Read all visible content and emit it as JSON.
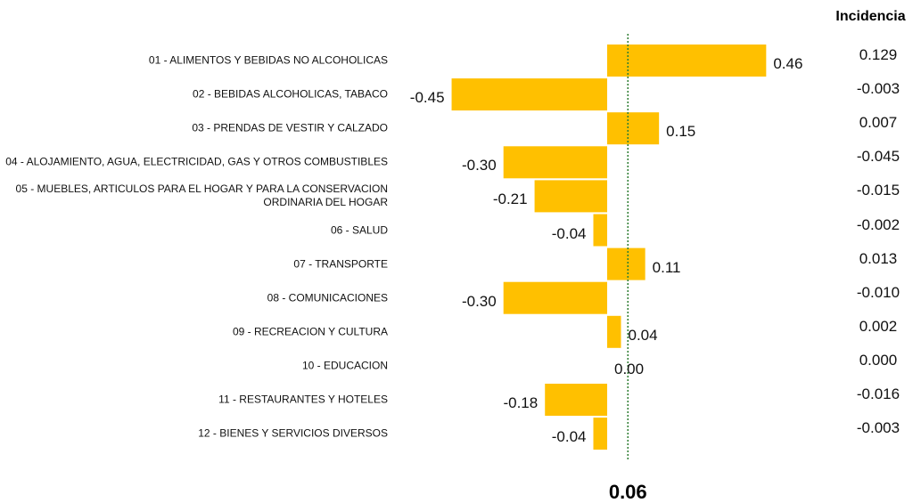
{
  "chart_data": {
    "type": "bar",
    "orientation": "horizontal",
    "categories": [
      "01 - ALIMENTOS Y BEBIDAS NO ALCOHOLICAS",
      "02 - BEBIDAS ALCOHOLICAS, TABACO",
      "03 - PRENDAS DE VESTIR Y CALZADO",
      "04 - ALOJAMIENTO, AGUA, ELECTRICIDAD, GAS Y OTROS COMBUSTIBLES",
      "05 - MUEBLES, ARTICULOS PARA EL HOGAR Y PARA LA CONSERVACION ORDINARIA DEL HOGAR",
      "06 - SALUD",
      "07 - TRANSPORTE",
      "08 - COMUNICACIONES",
      "09 - RECREACION Y CULTURA",
      "10 - EDUCACION",
      "11 - RESTAURANTES Y HOTELES",
      "12 - BIENES Y SERVICIOS DIVERSOS"
    ],
    "values": [
      0.46,
      -0.45,
      0.15,
      -0.3,
      -0.21,
      -0.04,
      0.11,
      -0.3,
      0.04,
      0.0,
      -0.18,
      -0.04
    ],
    "value_labels": [
      "0.46",
      "-0.45",
      "0.15",
      "-0.30",
      "-0.21",
      "-0.04",
      "0.11",
      "-0.30",
      "0.04",
      "0.00",
      "-0.18",
      "-0.04"
    ],
    "color": "#ffc000",
    "xlim": [
      -0.65,
      0.65
    ],
    "reference_line": 0.06,
    "reference_color": "#2e7d32",
    "incidencia": {
      "title": "Incidencia",
      "labels": [
        "0.129",
        "-0.003",
        "0.007",
        "-0.045",
        "-0.015",
        "-0.002",
        "0.013",
        "-0.010",
        "0.002",
        "0.000",
        "-0.016",
        "-0.003"
      ]
    }
  }
}
